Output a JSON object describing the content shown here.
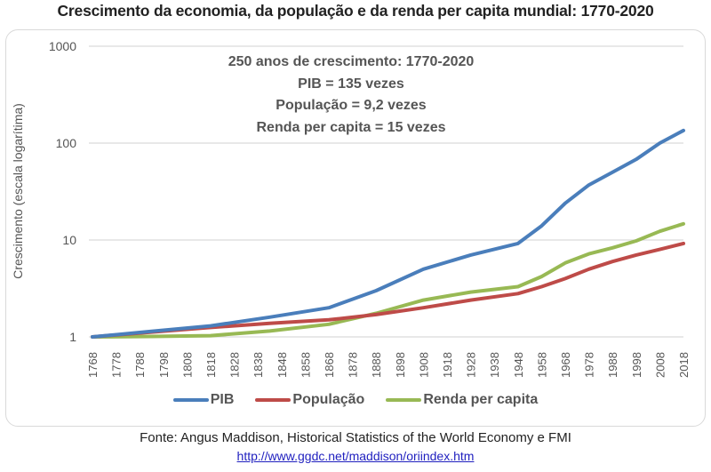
{
  "chart_data": {
    "type": "line",
    "title": "Crescimento da economia, da população e da renda per capita mundial: 1770-2020",
    "xlabel": "",
    "ylabel": "Crescimento (escala logarítima)",
    "yscale": "log",
    "ylim": [
      1,
      1000
    ],
    "yticks": [
      "1",
      "10",
      "100",
      "1000"
    ],
    "ytick_values": [
      1,
      10,
      100,
      1000
    ],
    "x_ticks": [
      "1768",
      "1778",
      "1788",
      "1798",
      "1808",
      "1818",
      "1828",
      "1838",
      "1848",
      "1858",
      "1868",
      "1878",
      "1888",
      "1898",
      "1908",
      "1918",
      "1928",
      "1938",
      "1948",
      "1958",
      "1968",
      "1978",
      "1988",
      "1998",
      "2008",
      "2018"
    ],
    "xlim": [
      1768,
      2018
    ],
    "grid": true,
    "legend_position": "bottom",
    "annotation": [
      "250 anos de crescimento: 1770-2020",
      "PIB = 135 vezes",
      "População = 9,2 vezes",
      "Renda per capita = 15 vezes"
    ],
    "x": [
      1768,
      1793,
      1818,
      1843,
      1868,
      1888,
      1908,
      1928,
      1948,
      1958,
      1968,
      1978,
      1988,
      1998,
      2008,
      2018
    ],
    "series": [
      {
        "name": "PIB",
        "color": "#4a7ebb",
        "values": [
          1,
          1.14,
          1.3,
          1.6,
          2.0,
          3.0,
          5.0,
          7.0,
          9.2,
          14,
          24,
          37,
          50,
          68,
          100,
          135
        ]
      },
      {
        "name": "População",
        "color": "#be4b48",
        "values": [
          1,
          1.12,
          1.25,
          1.38,
          1.5,
          1.7,
          2.0,
          2.4,
          2.8,
          3.3,
          4.0,
          5.0,
          6.0,
          7.0,
          8.0,
          9.2
        ]
      },
      {
        "name": "Renda per capita",
        "color": "#98b954",
        "values": [
          1,
          1.01,
          1.03,
          1.15,
          1.35,
          1.75,
          2.4,
          2.9,
          3.3,
          4.2,
          5.8,
          7.2,
          8.3,
          9.8,
          12.3,
          14.7
        ]
      }
    ]
  },
  "source": "Fonte: Angus Maddison, Historical Statistics of the World Economy e FMI",
  "source_link": "http://www.ggdc.net/maddison/oriindex.htm"
}
